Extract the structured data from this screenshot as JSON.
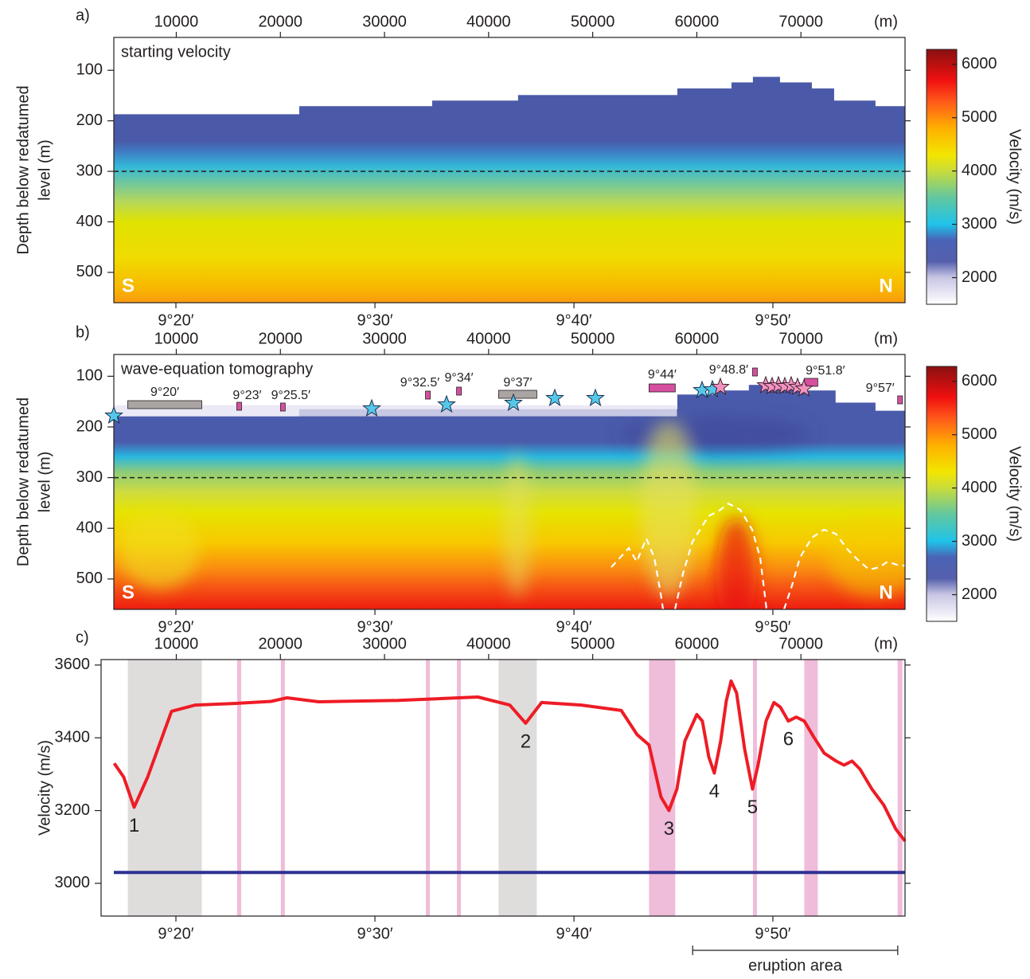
{
  "chart_data": [
    {
      "type": "section",
      "panel": "a)",
      "title": "starting velocity",
      "ylabel": [
        "Depth below redatumed",
        "level (m)"
      ],
      "x_unit": "(m)",
      "xlim": [
        4000,
        80000
      ],
      "xticks": [
        10000,
        20000,
        30000,
        40000,
        50000,
        60000,
        70000
      ],
      "x2lim": [
        9.2813,
        9.944
      ],
      "x2ticks": [
        {
          "value": 9.3333,
          "label": "9°20′"
        },
        {
          "value": 9.5,
          "label": "9°30′"
        },
        {
          "value": 9.6667,
          "label": "9°40′"
        },
        {
          "value": 9.8333,
          "label": "9°50′"
        }
      ],
      "ylim": [
        35,
        560
      ],
      "yticks": [
        100,
        200,
        300,
        400,
        500
      ],
      "reference_depth": 300,
      "seafloor": {
        "x_edges": [
          4040,
          21770,
          34540,
          42790,
          58090,
          63290,
          65350,
          68030,
          71090,
          73230,
          77200,
          80000
        ],
        "depth": [
          187,
          171,
          160,
          149,
          136,
          124,
          113,
          124,
          136,
          160,
          171
        ]
      },
      "corner_labels": [
        "S",
        "N"
      ],
      "colorbar": {
        "label": "Velocity (m/s)",
        "lim": [
          1500,
          6280
        ],
        "ticks": [
          2000,
          3000,
          4000,
          5000,
          6000
        ],
        "stops": [
          {
            "value": 1500,
            "color": "#ffffff"
          },
          {
            "value": 2000,
            "color": "#c9c6e4"
          },
          {
            "value": 2300,
            "color": "#5560ad"
          },
          {
            "value": 2700,
            "color": "#4a63b5"
          },
          {
            "value": 3000,
            "color": "#1fc3ea"
          },
          {
            "value": 3500,
            "color": "#62c7a0"
          },
          {
            "value": 4000,
            "color": "#c8dc3c"
          },
          {
            "value": 4300,
            "color": "#f2e600"
          },
          {
            "value": 4800,
            "color": "#ffb000"
          },
          {
            "value": 5300,
            "color": "#ff5a1a"
          },
          {
            "value": 5700,
            "color": "#f01010"
          },
          {
            "value": 6280,
            "color": "#8a1010"
          }
        ]
      }
    },
    {
      "type": "section",
      "panel": "b)",
      "title": "wave-equation tomography",
      "ylabel": [
        "Depth below redatumed",
        "level (m)"
      ],
      "x_unit": "(m)",
      "xlim": [
        4000,
        80000
      ],
      "xticks": [
        10000,
        20000,
        30000,
        40000,
        50000,
        60000,
        70000
      ],
      "x2lim": [
        9.2813,
        9.944
      ],
      "x2ticks": [
        {
          "value": 9.3333,
          "label": "9°20′"
        },
        {
          "value": 9.5,
          "label": "9°30′"
        },
        {
          "value": 9.6667,
          "label": "9°40′"
        },
        {
          "value": 9.8333,
          "label": "9°50′"
        }
      ],
      "ylim": [
        57,
        560
      ],
      "yticks": [
        100,
        200,
        300,
        400,
        500
      ],
      "reference_depth": 300,
      "seafloor": {
        "x_edges": [
          4040,
          21770,
          58090,
          61910,
          64960,
          69550,
          73370,
          77200,
          80000
        ],
        "depth": [
          179,
          165,
          136,
          128,
          117,
          128,
          152,
          168
        ]
      },
      "corner_labels": [
        "S",
        "N"
      ],
      "features": [
        {
          "label": "9°20′",
          "x": [
            5340,
            12450
          ],
          "color": "#aaa4a3"
        },
        {
          "label": "9°23′",
          "x": [
            15890,
            16190
          ],
          "color": "#d64f9f"
        },
        {
          "label": "9°25.5′",
          "x": [
            20080,
            20390
          ],
          "color": "#d64f9f"
        },
        {
          "label": "9°32.5′",
          "x": [
            34010,
            34320
          ],
          "color": "#d64f9f"
        },
        {
          "label": "9°34′",
          "x": [
            37000,
            37300
          ],
          "color": "#d64f9f"
        },
        {
          "label": "9°37′",
          "x": [
            40960,
            44630
          ],
          "color": "#aaa4a3"
        },
        {
          "label": "9°44′",
          "x": [
            55410,
            57930
          ],
          "color": "#d64f9f"
        },
        {
          "label": "9°48.8′",
          "x": [
            65430,
            65740
          ],
          "color": "#d64f9f"
        },
        {
          "label": "9°51.8′",
          "x": [
            70320,
            71620
          ],
          "color": "#d64f9f"
        },
        {
          "label": "9°57′",
          "x": [
            79290,
            79750
          ],
          "color": "#d64f9f"
        }
      ],
      "colorbar": {
        "label": "Velocity (m/s)",
        "lim": [
          1500,
          6280
        ],
        "ticks": [
          2000,
          3000,
          4000,
          5000,
          6000
        ],
        "stops": [
          {
            "value": 1500,
            "color": "#ffffff"
          },
          {
            "value": 2000,
            "color": "#c9c6e4"
          },
          {
            "value": 2300,
            "color": "#5560ad"
          },
          {
            "value": 2700,
            "color": "#4a63b5"
          },
          {
            "value": 3000,
            "color": "#1fc3ea"
          },
          {
            "value": 3500,
            "color": "#62c7a0"
          },
          {
            "value": 4000,
            "color": "#c8dc3c"
          },
          {
            "value": 4300,
            "color": "#f2e600"
          },
          {
            "value": 4800,
            "color": "#ffb000"
          },
          {
            "value": 5300,
            "color": "#ff5a1a"
          },
          {
            "value": 5700,
            "color": "#f01010"
          },
          {
            "value": 6280,
            "color": "#8a1010"
          }
        ]
      }
    },
    {
      "type": "line",
      "panel": "c)",
      "ylabel": "Velocity (m/s)",
      "x_unit": "(m)",
      "xlim": [
        4000,
        80000
      ],
      "xticks": [
        10000,
        20000,
        30000,
        40000,
        50000,
        60000,
        70000
      ],
      "x2lim": [
        9.2813,
        9.944
      ],
      "x2ticks": [
        {
          "value": 9.3333,
          "label": "9°20′"
        },
        {
          "value": 9.5,
          "label": "9°30′"
        },
        {
          "value": 9.6667,
          "label": "9°40′"
        },
        {
          "value": 9.8333,
          "label": "9°50′"
        }
      ],
      "ylim": [
        2910,
        3615
      ],
      "yticks": [
        3000,
        3200,
        3400,
        3600
      ],
      "x": [
        4040,
        4950,
        5950,
        7250,
        8780,
        9540,
        11830,
        16040,
        19100,
        20630,
        23680,
        31330,
        38970,
        42030,
        43560,
        45090,
        48910,
        52740,
        54260,
        55410,
        56560,
        57320,
        58090,
        58850,
        60000,
        60530,
        61150,
        61680,
        62290,
        62830,
        63290,
        63820,
        64590,
        65350,
        65880,
        66650,
        67410,
        68030,
        68790,
        69550,
        70320,
        71240,
        72230,
        73380,
        74140,
        74910,
        75670,
        76820,
        77960,
        79110,
        80000
      ],
      "values": [
        3330,
        3292,
        3209,
        3292,
        3413,
        3473,
        3490,
        3495,
        3500,
        3510,
        3499,
        3503,
        3512,
        3490,
        3440,
        3497,
        3490,
        3475,
        3409,
        3380,
        3237,
        3200,
        3259,
        3391,
        3464,
        3446,
        3347,
        3303,
        3391,
        3501,
        3556,
        3523,
        3369,
        3259,
        3325,
        3446,
        3497,
        3484,
        3446,
        3457,
        3446,
        3402,
        3358,
        3336,
        3325,
        3336,
        3314,
        3259,
        3215,
        3149,
        3116
      ],
      "color": "#ee1c25",
      "baseline": {
        "value": 3030,
        "color": "#2e3192"
      },
      "annotations": [
        {
          "text": "1",
          "x": 5950,
          "y": 3209
        },
        {
          "text": "2",
          "x": 43560,
          "y": 3440
        },
        {
          "text": "3",
          "x": 57320,
          "y": 3200
        },
        {
          "text": "4",
          "x": 61680,
          "y": 3303
        },
        {
          "text": "5",
          "x": 65350,
          "y": 3259
        },
        {
          "text": "6",
          "x": 68790,
          "y": 3446
        }
      ],
      "span": {
        "label": "eruption area",
        "x": [
          59600,
          79300
        ]
      }
    }
  ]
}
